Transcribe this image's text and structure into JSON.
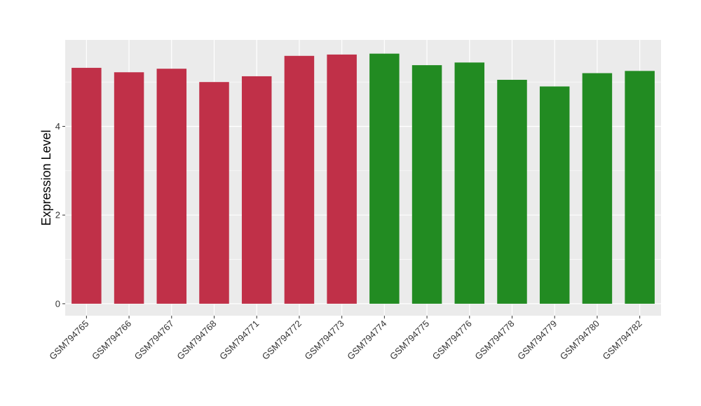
{
  "chart_data": {
    "type": "bar",
    "title": "",
    "xlabel": "",
    "ylabel": "Expression Level",
    "ylim": [
      -0.27,
      5.95
    ],
    "yticks": [
      0,
      2,
      4
    ],
    "grid": true,
    "legend": "none",
    "categories": [
      "GSM794765",
      "GSM794766",
      "GSM794767",
      "GSM794768",
      "GSM794771",
      "GSM794772",
      "GSM794773",
      "GSM794774",
      "GSM794775",
      "GSM794776",
      "GSM794778",
      "GSM794779",
      "GSM794780",
      "GSM794782"
    ],
    "values": [
      5.32,
      5.22,
      5.3,
      5.0,
      5.13,
      5.59,
      5.62,
      5.64,
      5.38,
      5.44,
      5.05,
      4.9,
      5.2,
      5.25
    ],
    "colors": [
      "#c03048",
      "#c03048",
      "#c03048",
      "#c03048",
      "#c03048",
      "#c03048",
      "#c03048",
      "#228b22",
      "#228b22",
      "#228b22",
      "#228b22",
      "#228b22",
      "#228b22",
      "#228b22"
    ],
    "panel_background": "#ebebeb",
    "gridline_color": "#ffffff"
  }
}
